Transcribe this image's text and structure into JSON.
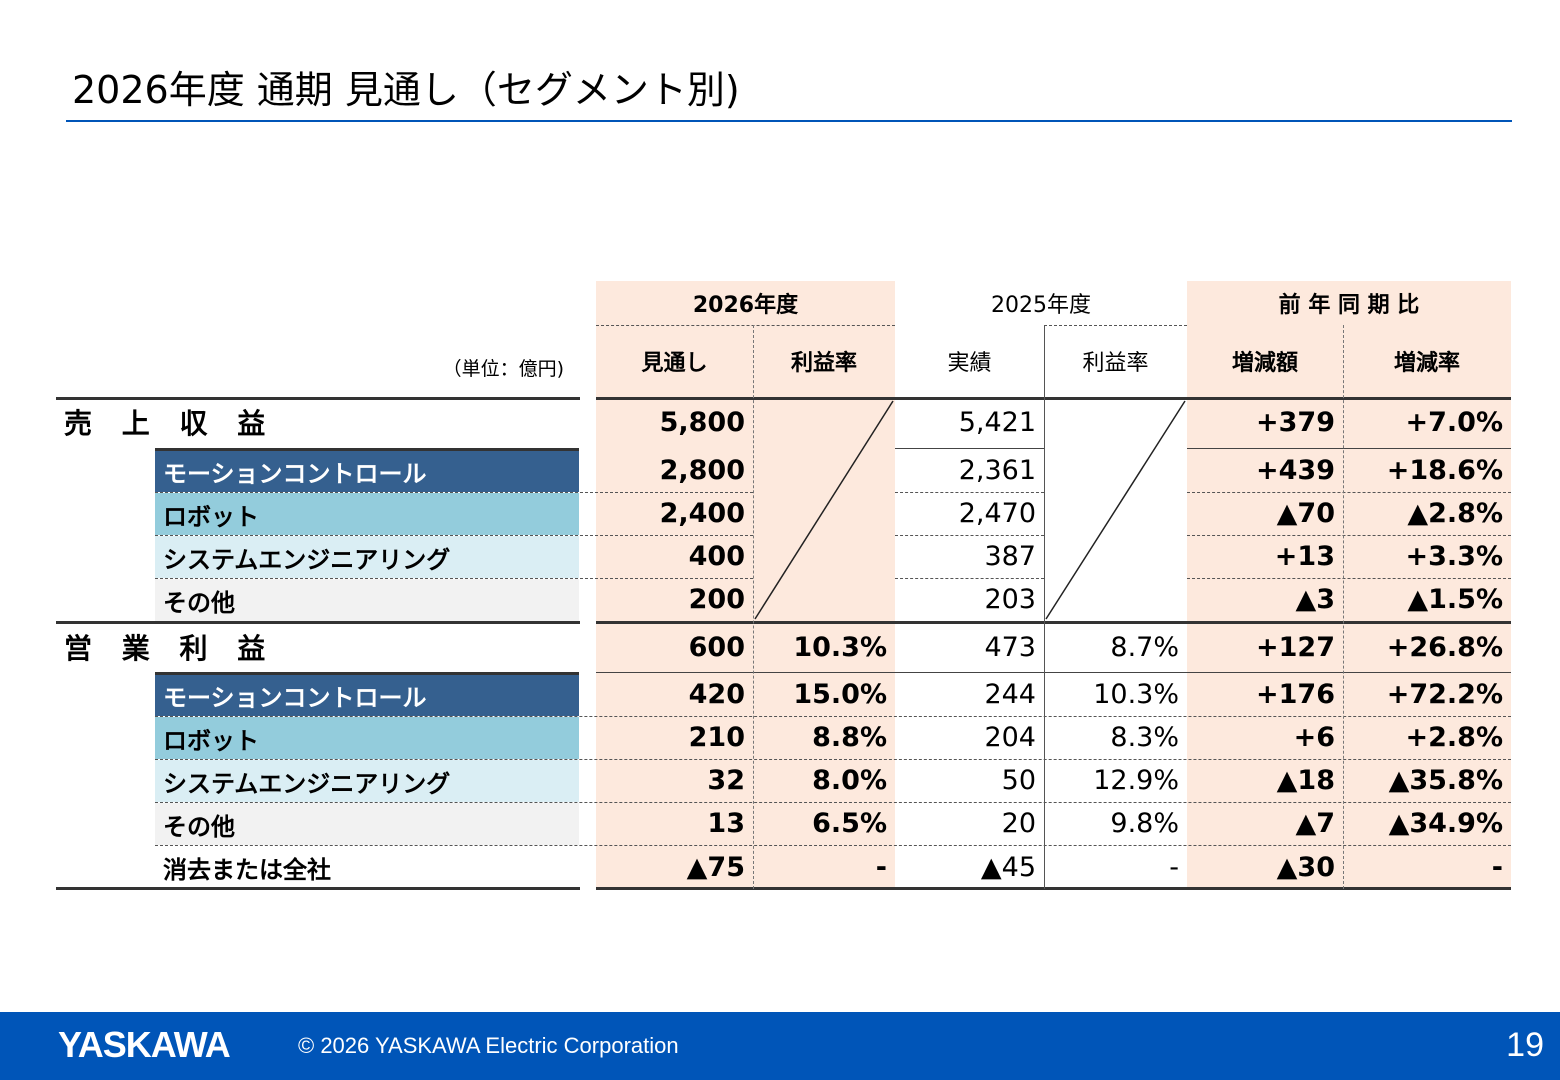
{
  "title": "2026年度 通期 見通し（セグメント別)",
  "unit": "（単位：億円)",
  "headers": {
    "fy2026": "2026年度",
    "fy2025": "2025年度",
    "yoy": "前 年 同 期 比",
    "forecast": "見通し",
    "margin_2026": "利益率",
    "actual": "実績",
    "margin_2025": "利益率",
    "change_amount": "増減額",
    "change_rate": "増減率"
  },
  "rows": [
    {
      "label": "売 上 収 益",
      "forecast": "5,800",
      "margin_2026": "",
      "actual": "5,421",
      "margin_2025": "",
      "change_amount": "+379",
      "change_rate": "+7.0%"
    },
    {
      "label": "モーションコントロール",
      "forecast": "2,800",
      "margin_2026": "",
      "actual": "2,361",
      "margin_2025": "",
      "change_amount": "+439",
      "change_rate": "+18.6%"
    },
    {
      "label": "ロボット",
      "forecast": "2,400",
      "margin_2026": "",
      "actual": "2,470",
      "margin_2025": "",
      "change_amount": "▲70",
      "change_rate": "▲2.8%"
    },
    {
      "label": "システムエンジニアリング",
      "forecast": "400",
      "margin_2026": "",
      "actual": "387",
      "margin_2025": "",
      "change_amount": "+13",
      "change_rate": "+3.3%"
    },
    {
      "label": "その他",
      "forecast": "200",
      "margin_2026": "",
      "actual": "203",
      "margin_2025": "",
      "change_amount": "▲3",
      "change_rate": "▲1.5%"
    },
    {
      "label": "営 業 利 益",
      "forecast": "600",
      "margin_2026": "10.3%",
      "actual": "473",
      "margin_2025": "8.7%",
      "change_amount": "+127",
      "change_rate": "+26.8%"
    },
    {
      "label": "モーションコントロール",
      "forecast": "420",
      "margin_2026": "15.0%",
      "actual": "244",
      "margin_2025": "10.3%",
      "change_amount": "+176",
      "change_rate": "+72.2%"
    },
    {
      "label": "ロボット",
      "forecast": "210",
      "margin_2026": "8.8%",
      "actual": "204",
      "margin_2025": "8.3%",
      "change_amount": "+6",
      "change_rate": "+2.8%"
    },
    {
      "label": "システムエンジニアリング",
      "forecast": "32",
      "margin_2026": "8.0%",
      "actual": "50",
      "margin_2025": "12.9%",
      "change_amount": "▲18",
      "change_rate": "▲35.8%"
    },
    {
      "label": "その他",
      "forecast": "13",
      "margin_2026": "6.5%",
      "actual": "20",
      "margin_2025": "9.8%",
      "change_amount": "▲7",
      "change_rate": "▲34.9%"
    },
    {
      "label": "消去または全社",
      "forecast": "▲75",
      "margin_2026": "-",
      "actual": "▲45",
      "margin_2025": "-",
      "change_amount": "▲30",
      "change_rate": "-"
    }
  ],
  "colors": {
    "brand_blue": "#0055b8",
    "highlight": "#fde9dd",
    "motion_control": "#35608f",
    "robot": "#93ccdc",
    "system_engineering": "#daeef4",
    "other": "#f2f2f2"
  },
  "footer": {
    "logo": "YASKAWA",
    "copyright": "© 2026 YASKAWA Electric Corporation",
    "page_number": "19"
  }
}
